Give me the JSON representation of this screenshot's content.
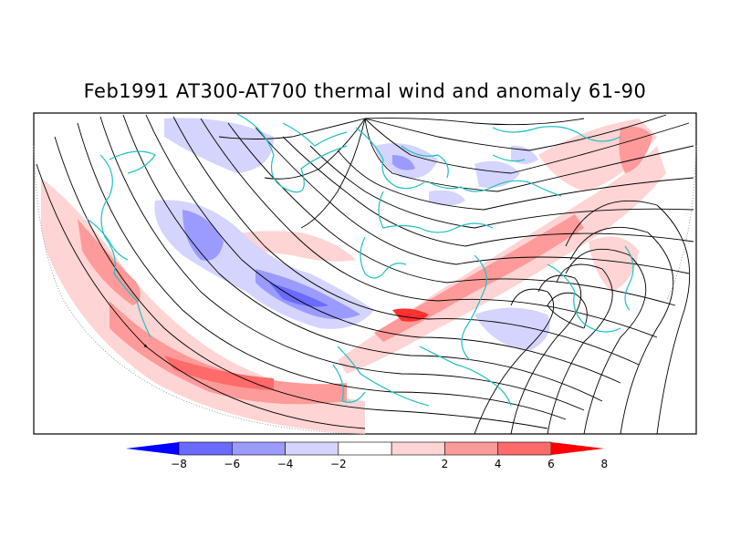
{
  "title": "Feb1991 AT300-AT700 thermal wind and anomaly 61-90",
  "colorbar": {
    "tick_labels": [
      "-8",
      "-6",
      "-4",
      "-2",
      "2",
      "4",
      "6",
      "8"
    ],
    "colors": [
      "#0000ff",
      "#6a6aff",
      "#9a9aff",
      "#d4d4ff",
      "#ffffff",
      "#ffd4d4",
      "#ff9a9a",
      "#ff6a6a",
      "#ff0000"
    ]
  },
  "map": {
    "field": "thermal wind streamlines",
    "anomaly_shading": "AT300-AT700 anomaly vs 1961-90",
    "coastline_color": "#20c0c0",
    "streamline_color": "#000000"
  }
}
